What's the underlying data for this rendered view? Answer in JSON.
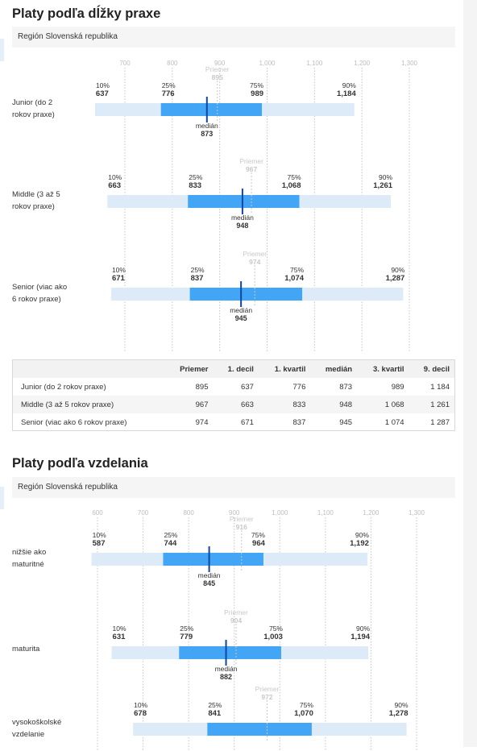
{
  "section1": {
    "title": "Platy podľa dĺžky praxe",
    "region": "Región Slovenská republika"
  },
  "section2": {
    "title": "Platy podľa vzdelania",
    "region": "Región Slovenská republika"
  },
  "table": {
    "headers": [
      "",
      "Priemer",
      "1. decil",
      "1. kvartil",
      "medián",
      "3. kvartil",
      "9. decil"
    ],
    "rows": [
      [
        "Junior (do 2 rokov praxe)",
        "895",
        "637",
        "776",
        "873",
        "989",
        "1 184"
      ],
      [
        "Middle (3 až 5 rokov praxe)",
        "967",
        "663",
        "833",
        "948",
        "1 068",
        "1 261"
      ],
      [
        "Senior (viac ako 6 rokov praxe)",
        "974",
        "671",
        "837",
        "945",
        "1 074",
        "1 287"
      ]
    ]
  },
  "colors": {
    "iqr": "#42a5f5",
    "range": "#dcebf7",
    "median": "#0d47a1",
    "mean": "#c8c8c8",
    "grid": "#c4c4c4",
    "tick": "#bdbdbd"
  },
  "chart_data": [
    {
      "type": "box",
      "xlim": [
        650,
        1310
      ],
      "xticks": [
        700,
        800,
        900,
        1000,
        1100,
        1200,
        1300
      ],
      "tick_labels": [
        "700",
        "800",
        "900",
        "1,000",
        "1,100",
        "1,200",
        "1,300"
      ],
      "mean_label": "Priemer",
      "median_label": "medián",
      "rows": [
        {
          "name": "Junior (do 2\nrokov praxe)",
          "p10": 637,
          "p25": 776,
          "median": 873,
          "p75": 989,
          "p90": 1184,
          "mean": 895,
          "p10_label": "637",
          "p25_label": "776",
          "median_label_value": "873",
          "p75_label": "989",
          "p90_label": "1,184",
          "mean_label_value": "895"
        },
        {
          "name": "Middle (3 až 5\nrokov praxe)",
          "p10": 663,
          "p25": 833,
          "median": 948,
          "p75": 1068,
          "p90": 1261,
          "mean": 967,
          "p10_label": "663",
          "p25_label": "833",
          "median_label_value": "948",
          "p75_label": "1,068",
          "p90_label": "1,261",
          "mean_label_value": "967"
        },
        {
          "name": "Senior (viac ako\n6 rokov praxe)",
          "p10": 671,
          "p25": 837,
          "median": 945,
          "p75": 1074,
          "p90": 1287,
          "mean": 974,
          "p10_label": "671",
          "p25_label": "837",
          "median_label_value": "945",
          "p75_label": "1,074",
          "p90_label": "1,287",
          "mean_label_value": "974"
        }
      ]
    },
    {
      "type": "box",
      "xlim": [
        550,
        1330
      ],
      "xticks": [
        600,
        700,
        800,
        900,
        1000,
        1100,
        1200,
        1300
      ],
      "tick_labels": [
        "600",
        "700",
        "800",
        "900",
        "1,000",
        "1,100",
        "1,200",
        "1,300"
      ],
      "mean_label": "Priemer",
      "median_label": "medián",
      "rows": [
        {
          "name": "nižšie ako\nmaturitné",
          "p10": 587,
          "p25": 744,
          "median": 845,
          "p75": 964,
          "p90": 1192,
          "mean": 916,
          "p10_label": "587",
          "p25_label": "744",
          "median_label_value": "845",
          "p75_label": "964",
          "p90_label": "1,192",
          "mean_label_value": "916"
        },
        {
          "name": "maturita",
          "p10": 631,
          "p25": 779,
          "median": 882,
          "p75": 1003,
          "p90": 1194,
          "mean": 904,
          "p10_label": "631",
          "p25_label": "779",
          "median_label_value": "882",
          "p75_label": "1,003",
          "p90_label": "1,194",
          "mean_label_value": "904"
        },
        {
          "name": "vysokoškolské\nvzdelanie",
          "p10": 678,
          "p25": 841,
          "median": null,
          "p75": 1070,
          "p90": 1278,
          "mean": 972,
          "p10_label": "678",
          "p25_label": "841",
          "median_label_value": "",
          "p75_label": "1,070",
          "p90_label": "1,278",
          "mean_label_value": "972"
        }
      ]
    }
  ]
}
